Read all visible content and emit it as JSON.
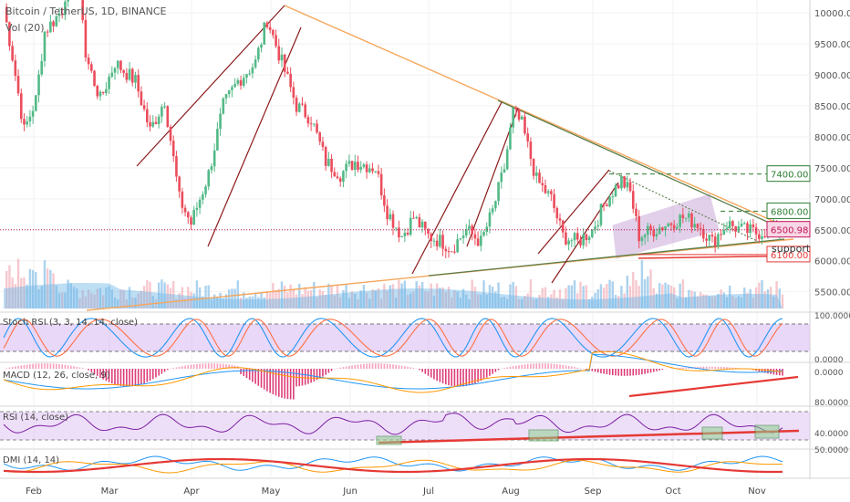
{
  "header": {
    "symbol": "Bitcoin / TetherUS, 1D, BINANCE",
    "volume_label": "Vol (20)"
  },
  "price_axis": {
    "ticks": [
      "10000.00",
      "9500.00",
      "9000.00",
      "8500.00",
      "8000.00",
      "7500.00",
      "7000.00",
      "6500.00",
      "6000.00",
      "5500.00"
    ],
    "tick_values": [
      10000,
      9500,
      9000,
      8500,
      8000,
      7500,
      7000,
      6500,
      6000,
      5500
    ]
  },
  "price_labels": [
    {
      "text": "7400.00",
      "value": 7400,
      "color": "#2e7d32",
      "style": "dashed"
    },
    {
      "text": "6800.00",
      "value": 6800,
      "color": "#2e7d32",
      "style": "dashed"
    },
    {
      "text": "6500.98",
      "value": 6500.98,
      "color": "#c2185b",
      "style": "dotted",
      "highlight": "#f8d7e6"
    },
    {
      "text": "6100.00",
      "value": 6100,
      "color": "#e53935",
      "style": "solid"
    }
  ],
  "annotation": "support",
  "x_axis": {
    "months": [
      "Feb",
      "Mar",
      "Apr",
      "May",
      "Jun",
      "Jul",
      "Aug",
      "Sep",
      "Oct",
      "Nov"
    ]
  },
  "indicators": {
    "stoch_rsi": {
      "label": "Stoch RSI (3, 3, 14, 14, close)",
      "ticks": [
        "100.0000",
        "0.0000"
      ]
    },
    "macd": {
      "label": "MACD (12, 26, close, 9)",
      "ticks": [
        "0.0000"
      ]
    },
    "rsi": {
      "label": "RSI (14, close)",
      "ticks": [
        "80.0000",
        "40.0000"
      ]
    },
    "dmi": {
      "label": "DMI (14, 14)",
      "ticks": [
        "50.0000"
      ]
    }
  },
  "colors": {
    "up": "#53b987",
    "down": "#eb4d5c",
    "volume_up": "#8fc3e8",
    "volume_down": "#f3b6bd",
    "triangle": "#f5a65b",
    "channel": "#9b59b6",
    "trend_green": "#5a7d4a",
    "trend_red": "#8b1a1a"
  },
  "chart_data": {
    "type": "candlestick",
    "title": "Bitcoin / TetherUS, 1D, BINANCE",
    "ylim": [
      5200,
      10150
    ],
    "x_categories": [
      "Feb",
      "Mar",
      "Apr",
      "May",
      "Jun",
      "Jul",
      "Aug",
      "Sep",
      "Oct",
      "Nov"
    ],
    "close_path": [
      {
        "x": 0,
        "y": 10100
      },
      {
        "x": 3,
        "y": 9300
      },
      {
        "x": 7,
        "y": 8100
      },
      {
        "x": 11,
        "y": 8600
      },
      {
        "x": 14,
        "y": 9700
      },
      {
        "x": 20,
        "y": 10050
      },
      {
        "x": 25,
        "y": 11300
      },
      {
        "x": 28,
        "y": 9300
      },
      {
        "x": 33,
        "y": 8600
      },
      {
        "x": 38,
        "y": 9200
      },
      {
        "x": 45,
        "y": 8900
      },
      {
        "x": 50,
        "y": 8100
      },
      {
        "x": 55,
        "y": 8600
      },
      {
        "x": 60,
        "y": 7000
      },
      {
        "x": 64,
        "y": 6600
      },
      {
        "x": 70,
        "y": 7400
      },
      {
        "x": 75,
        "y": 8500
      },
      {
        "x": 80,
        "y": 8900
      },
      {
        "x": 86,
        "y": 9200
      },
      {
        "x": 90,
        "y": 9900
      },
      {
        "x": 95,
        "y": 9200
      },
      {
        "x": 100,
        "y": 8500
      },
      {
        "x": 105,
        "y": 8300
      },
      {
        "x": 110,
        "y": 7600
      },
      {
        "x": 115,
        "y": 7400
      },
      {
        "x": 120,
        "y": 7600
      },
      {
        "x": 127,
        "y": 7500
      },
      {
        "x": 131,
        "y": 6800
      },
      {
        "x": 136,
        "y": 6400
      },
      {
        "x": 140,
        "y": 6700
      },
      {
        "x": 145,
        "y": 6400
      },
      {
        "x": 150,
        "y": 6300
      },
      {
        "x": 153,
        "y": 6200
      },
      {
        "x": 158,
        "y": 6500
      },
      {
        "x": 163,
        "y": 6300
      },
      {
        "x": 167,
        "y": 6800
      },
      {
        "x": 171,
        "y": 7500
      },
      {
        "x": 174,
        "y": 8400
      },
      {
        "x": 177,
        "y": 8200
      },
      {
        "x": 182,
        "y": 7300
      },
      {
        "x": 187,
        "y": 7000
      },
      {
        "x": 191,
        "y": 6400
      },
      {
        "x": 196,
        "y": 6300
      },
      {
        "x": 201,
        "y": 6500
      },
      {
        "x": 206,
        "y": 7000
      },
      {
        "x": 211,
        "y": 7300
      },
      {
        "x": 214,
        "y": 7100
      },
      {
        "x": 217,
        "y": 6400
      },
      {
        "x": 222,
        "y": 6500
      },
      {
        "x": 227,
        "y": 6600
      },
      {
        "x": 232,
        "y": 6700
      },
      {
        "x": 237,
        "y": 6600
      },
      {
        "x": 242,
        "y": 6300
      },
      {
        "x": 247,
        "y": 6600
      },
      {
        "x": 252,
        "y": 6500
      },
      {
        "x": 257,
        "y": 6450
      },
      {
        "x": 262,
        "y": 6500
      },
      {
        "x": 266,
        "y": 6500
      }
    ],
    "horizontal_levels": [
      7400,
      6800,
      6500.98,
      6100
    ],
    "rsi_levels": [
      80,
      40
    ],
    "stoch_rsi_levels": [
      100,
      0
    ]
  }
}
